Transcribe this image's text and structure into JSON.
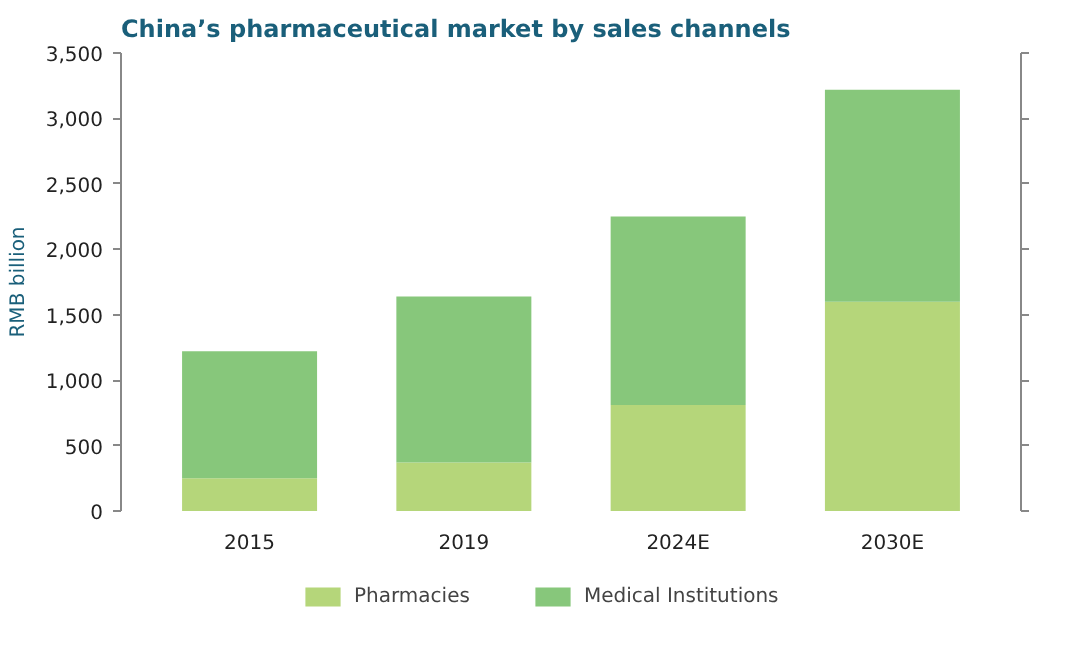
{
  "chart_data": {
    "type": "bar",
    "title": "China’s pharmaceutical market by sales channels",
    "ylabel": "RMB billion",
    "categories": [
      "2015",
      "2019",
      "2024E",
      "2030E"
    ],
    "stacked": true,
    "series": [
      {
        "name": "Pharmacies",
        "color": "#b5d67a",
        "values": [
          250,
          370,
          810,
          1600
        ]
      },
      {
        "name": "Medical Institutions",
        "color": "#87c77b",
        "values": [
          970,
          1270,
          1440,
          1620
        ]
      }
    ],
    "ylim": [
      0,
      3500
    ],
    "yticks": [
      {
        "value": 0,
        "label": "0"
      },
      {
        "value": 500,
        "label": "500"
      },
      {
        "value": 1000,
        "label": "1,000"
      },
      {
        "value": 1500,
        "label": "1,500"
      },
      {
        "value": 2000,
        "label": "2,000"
      },
      {
        "value": 2500,
        "label": "2,500"
      },
      {
        "value": 3000,
        "label": "3,000"
      },
      {
        "value": 3500,
        "label": "3,500"
      }
    ],
    "grid": false,
    "legend": "bottom"
  }
}
